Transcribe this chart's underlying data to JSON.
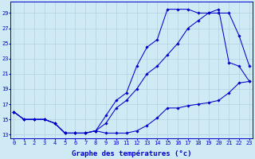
{
  "title": "Graphe des températures (°c)",
  "hours": [
    0,
    1,
    2,
    3,
    4,
    5,
    6,
    7,
    8,
    9,
    10,
    11,
    12,
    13,
    14,
    15,
    16,
    17,
    18,
    19,
    20,
    21,
    22,
    23
  ],
  "line1": [
    16,
    15,
    15,
    15,
    14.5,
    13.2,
    13.2,
    13.2,
    13.5,
    13.2,
    13.2,
    13.2,
    13.5,
    14.2,
    15.2,
    16.5,
    16.5,
    16.8,
    17.0,
    17.2,
    17.5,
    18.5,
    19.8,
    20.0
  ],
  "line2": [
    16,
    15,
    15,
    15,
    14.5,
    13.2,
    13.2,
    13.2,
    13.5,
    14.5,
    16.5,
    17.5,
    19.0,
    21.0,
    22.0,
    23.5,
    25.0,
    27.0,
    28.0,
    29.0,
    29.0,
    29.0,
    26.0,
    22.0
  ],
  "line3": [
    16,
    15,
    15,
    15,
    14.5,
    13.2,
    13.2,
    13.2,
    13.5,
    15.5,
    17.5,
    18.5,
    22.0,
    24.5,
    25.5,
    29.5,
    29.5,
    29.5,
    29.0,
    29.0,
    29.5,
    22.5,
    22.0,
    20.0
  ],
  "line_color": "#0000cc",
  "bg_color": "#d0eaf5",
  "grid_color": "#aaccdd",
  "ylim": [
    12.5,
    30.5
  ],
  "yticks": [
    13,
    15,
    17,
    19,
    21,
    23,
    25,
    27,
    29
  ],
  "xlim": [
    -0.3,
    23.3
  ],
  "tick_fontsize": 5.0,
  "xlabel_fontsize": 6.5
}
